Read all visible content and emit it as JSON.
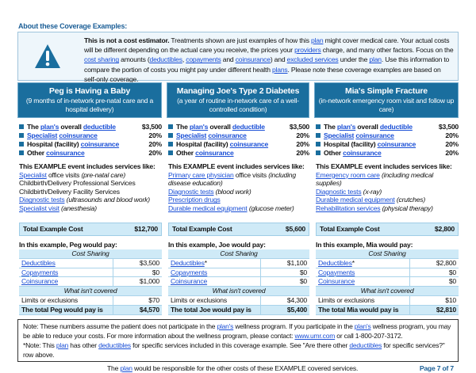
{
  "about": {
    "title": "About these Coverage Examples:",
    "icon": "warning-icon",
    "text": [
      {
        "t": "This is not a cost estimator.",
        "b": 1
      },
      {
        "t": " Treatments shown are just examples of how this "
      },
      {
        "t": "plan",
        "l": 1
      },
      {
        "t": " might cover medical care. Your actual costs will be different depending on the actual care you receive, the prices your "
      },
      {
        "t": "providers",
        "l": 1
      },
      {
        "t": " charge, and many other factors. Focus on the "
      },
      {
        "t": "cost sharing",
        "l": 1
      },
      {
        "t": " amounts ("
      },
      {
        "t": "deductibles",
        "l": 1
      },
      {
        "t": ", "
      },
      {
        "t": "copayments",
        "l": 1
      },
      {
        "t": " and "
      },
      {
        "t": "coinsurance",
        "l": 1
      },
      {
        "t": ") and "
      },
      {
        "t": "excluded services",
        "l": 1
      },
      {
        "t": " under the "
      },
      {
        "t": "plan",
        "l": 1
      },
      {
        "t": ". Use this information to compare the portion of costs you might pay under different health "
      },
      {
        "t": "plans",
        "l": 1
      },
      {
        "t": ". Please note these coverage examples are based on self-only coverage."
      }
    ]
  },
  "accent": "#1a6e9e",
  "examples": [
    {
      "title": "Peg is Having a Baby",
      "subtitle": "(9 months of in-network pre-natal care and a hospital delivery)",
      "bullets": [
        {
          "seg": [
            {
              "t": "The "
            },
            {
              "t": "plan's",
              "l": 1
            },
            {
              "t": " overall "
            },
            {
              "t": "deductible",
              "l": 1
            }
          ],
          "v": "$3,500"
        },
        {
          "seg": [
            {
              "t": "Specialist",
              "l": 1
            },
            {
              "t": " "
            },
            {
              "t": "coinsurance",
              "l": 1
            }
          ],
          "v": "20%"
        },
        {
          "seg": [
            {
              "t": "Hospital (facility) "
            },
            {
              "t": "coinsurance",
              "l": 1
            }
          ],
          "v": "20%"
        },
        {
          "seg": [
            {
              "t": "Other "
            },
            {
              "t": "coinsurance",
              "l": 1
            }
          ],
          "v": "20%"
        }
      ],
      "services_title": "This EXAMPLE event includes services like:",
      "services": [
        [
          {
            "t": "Specialist",
            "l": 1
          },
          {
            "t": " office visits "
          },
          {
            "t": "(pre-natal care)",
            "i": 1
          }
        ],
        [
          {
            "t": "Childbirth/Delivery Professional Services"
          }
        ],
        [
          {
            "t": "Childbirth/Delivery Facility Services"
          }
        ],
        [
          {
            "t": "Diagnostic tests",
            "l": 1
          },
          {
            "t": " "
          },
          {
            "t": "(ultrasounds and blood work)",
            "i": 1
          }
        ],
        [
          {
            "t": "Specialist visit",
            "l": 1
          },
          {
            "t": " "
          },
          {
            "t": "(anesthesia)",
            "i": 1
          }
        ]
      ],
      "total_label": "Total Example Cost",
      "total": "$12,700",
      "pay_title": "In this example, Peg would pay:",
      "cost_sharing": "Cost Sharing",
      "rows": [
        {
          "k": "Deductibles",
          "v": "$3,500"
        },
        {
          "k": "Copayments",
          "v": "$0"
        },
        {
          "k": "Coinsurance",
          "v": "$1,000"
        }
      ],
      "not_covered": "What isn't covered",
      "limits": "Limits or exclusions",
      "limits_v": "$70",
      "final": "The total Peg would pay is",
      "final_v": "$4,570"
    },
    {
      "title": "Managing Joe's Type 2 Diabetes",
      "subtitle": "(a year of routine in-network care of a well-controlled condition)",
      "bullets": [
        {
          "seg": [
            {
              "t": "The "
            },
            {
              "t": "plan's",
              "l": 1
            },
            {
              "t": " overall "
            },
            {
              "t": "deductible",
              "l": 1
            }
          ],
          "v": "$3,500"
        },
        {
          "seg": [
            {
              "t": "Specialist",
              "l": 1
            },
            {
              "t": " "
            },
            {
              "t": "coinsurance",
              "l": 1
            }
          ],
          "v": "20%"
        },
        {
          "seg": [
            {
              "t": "Hospital (facility) "
            },
            {
              "t": "coinsurance",
              "l": 1
            }
          ],
          "v": "20%"
        },
        {
          "seg": [
            {
              "t": "Other "
            },
            {
              "t": "coinsurance",
              "l": 1
            }
          ],
          "v": "20%"
        }
      ],
      "services_title": "This EXAMPLE event includes services like:",
      "services": [
        [
          {
            "t": "Primary care physician",
            "l": 1
          },
          {
            "t": " office visits "
          },
          {
            "t": "(including disease education)",
            "i": 1
          }
        ],
        [
          {
            "t": "Diagnostic tests",
            "l": 1
          },
          {
            "t": " "
          },
          {
            "t": "(blood work)",
            "i": 1
          }
        ],
        [
          {
            "t": "Prescription drugs",
            "l": 1
          }
        ],
        [
          {
            "t": "Durable medical equipment",
            "l": 1
          },
          {
            "t": " "
          },
          {
            "t": "(glucose meter)",
            "i": 1
          }
        ]
      ],
      "total_label": "Total Example Cost",
      "total": "$5,600",
      "pay_title": "In this example, Joe would pay:",
      "cost_sharing": "Cost Sharing",
      "rows": [
        {
          "k": "Deductibles",
          "s": "*",
          "v": "$1,100"
        },
        {
          "k": "Copayments",
          "v": "$0"
        },
        {
          "k": "Coinsurance",
          "v": "$0"
        }
      ],
      "not_covered": "What isn't covered",
      "limits": "Limits or exclusions",
      "limits_v": "$4,300",
      "final": "The total Joe would pay is",
      "final_v": "$5,400"
    },
    {
      "title": "Mia's Simple Fracture",
      "subtitle": "(in-network emergency room visit and follow up care)",
      "bullets": [
        {
          "seg": [
            {
              "t": "The "
            },
            {
              "t": "plan's",
              "l": 1
            },
            {
              "t": " overall "
            },
            {
              "t": "deductible",
              "l": 1
            }
          ],
          "v": "$3,500"
        },
        {
          "seg": [
            {
              "t": "Specialist",
              "l": 1
            },
            {
              "t": " "
            },
            {
              "t": "coinsurance",
              "l": 1
            }
          ],
          "v": "20%"
        },
        {
          "seg": [
            {
              "t": "Hospital (facility) "
            },
            {
              "t": "coinsurance",
              "l": 1
            }
          ],
          "v": "20%"
        },
        {
          "seg": [
            {
              "t": "Other "
            },
            {
              "t": "coinsurance",
              "l": 1
            }
          ],
          "v": "20%"
        }
      ],
      "services_title": "This EXAMPLE event includes services like:",
      "services": [
        [
          {
            "t": "Emergency room care",
            "l": 1
          },
          {
            "t": " "
          },
          {
            "t": "(including medical supplies)",
            "i": 1
          }
        ],
        [
          {
            "t": "Diagnostic tests",
            "l": 1
          },
          {
            "t": " "
          },
          {
            "t": "(x-ray)",
            "i": 1
          }
        ],
        [
          {
            "t": "Durable medical equipment",
            "l": 1
          },
          {
            "t": " "
          },
          {
            "t": "(crutches)",
            "i": 1
          }
        ],
        [
          {
            "t": "Rehabilitation services",
            "l": 1
          },
          {
            "t": " "
          },
          {
            "t": "(physical therapy)",
            "i": 1
          }
        ]
      ],
      "total_label": "Total Example Cost",
      "total": "$2,800",
      "pay_title": "In this example, Mia would pay:",
      "cost_sharing": "Cost Sharing",
      "rows": [
        {
          "k": "Deductibles",
          "s": "*",
          "v": "$2,800"
        },
        {
          "k": "Copayments",
          "v": "$0"
        },
        {
          "k": "Coinsurance",
          "v": "$0"
        }
      ],
      "not_covered": "What isn't covered",
      "limits": "Limits or exclusions",
      "limits_v": "$10",
      "final": "The total Mia would pay is",
      "final_v": "$2,810"
    }
  ],
  "note": [
    {
      "t": "Note: These numbers assume the patient does not participate in the "
    },
    {
      "t": "plan's",
      "l": 1
    },
    {
      "t": " wellness program. If you participate in the "
    },
    {
      "t": "plan's",
      "l": 1
    },
    {
      "t": " wellness program, you may be able to reduce your costs. For more information about the wellness program, please contact: "
    },
    {
      "t": "www.umr.com",
      "l": 1
    },
    {
      "t": " or call 1-800-207-3172."
    },
    {
      "br": 1,
      "t": ""
    },
    {
      "t": "*Note: This "
    },
    {
      "t": "plan",
      "l": 1
    },
    {
      "t": " has other "
    },
    {
      "t": "deductibles",
      "l": 1
    },
    {
      "t": " for specific services included in this coverage example. See \"Are there other "
    },
    {
      "t": "deductibles",
      "l": 1
    },
    {
      "t": " for specific services?\" row above."
    }
  ],
  "footer": [
    {
      "t": "The "
    },
    {
      "t": "plan",
      "l": 1
    },
    {
      "t": " would be responsible for the other costs of these EXAMPLE covered services."
    }
  ],
  "page": "Page 7 of 7"
}
